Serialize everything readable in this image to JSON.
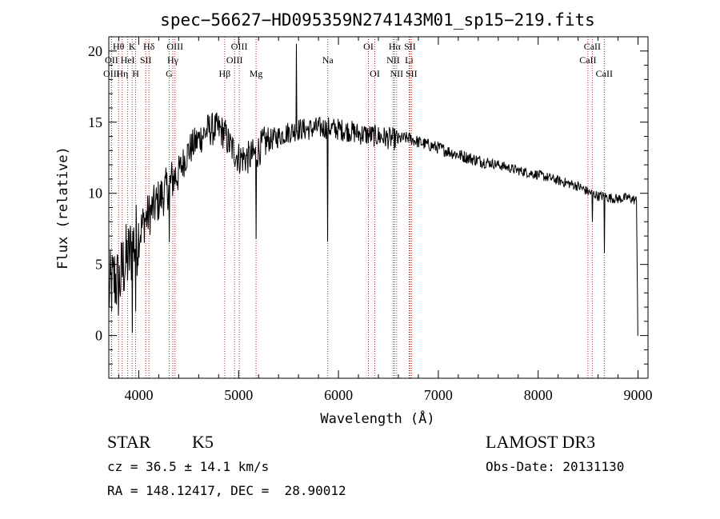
{
  "chart_data": {
    "type": "line",
    "title": "spec−56627−HD095359N274143M01_sp15−219.fits",
    "xlabel": "Wavelength (Å)",
    "ylabel": "Flux (relative)",
    "xlim": [
      3700,
      9100
    ],
    "ylim": [
      -3,
      21
    ],
    "xticks": [
      4000,
      5000,
      6000,
      7000,
      8000,
      9000
    ],
    "xtick_labels": [
      "4000",
      "5000",
      "6000",
      "7000",
      "8000",
      "9000"
    ],
    "yticks": [
      0,
      5,
      10,
      15,
      20
    ],
    "ytick_labels": [
      "0",
      "5",
      "10",
      "15",
      "20"
    ],
    "grid": false,
    "series": [
      {
        "name": "flux",
        "x": [
          3700,
          3760,
          3800,
          3850,
          3900,
          3950,
          4000,
          4050,
          4100,
          4150,
          4200,
          4250,
          4300,
          4340,
          4400,
          4500,
          4600,
          4700,
          4800,
          4861,
          4900,
          5000,
          5100,
          5175,
          5250,
          5400,
          5500,
          5600,
          5700,
          5800,
          5893,
          6000,
          6100,
          6200,
          6300,
          6400,
          6563,
          6700,
          6800,
          7000,
          7200,
          7400,
          7600,
          7800,
          8000,
          8200,
          8400,
          8500,
          8542,
          8600,
          8662,
          8700,
          8800,
          8900,
          8980,
          9000
        ],
        "y": [
          3,
          4,
          3.5,
          5,
          5.5,
          6.5,
          7,
          8,
          8.5,
          9,
          9.5,
          10,
          10.5,
          11,
          11.5,
          13,
          13.8,
          14.5,
          14.5,
          14.2,
          13.5,
          12.5,
          12.5,
          12.8,
          13.5,
          14,
          14.3,
          14.5,
          14.5,
          14.6,
          14.6,
          14.5,
          14.4,
          14.2,
          14.1,
          14,
          13.8,
          13.9,
          13.6,
          13.2,
          12.7,
          12.3,
          12,
          11.6,
          11.3,
          10.9,
          10.5,
          10.1,
          10,
          9.8,
          9.8,
          9.7,
          9.6,
          9.7,
          9.5,
          9.2
        ]
      }
    ],
    "spectral_lines": [
      {
        "label": "Hθ",
        "wavelength": 3798,
        "row": 1
      },
      {
        "label": "OII",
        "wavelength": 3727,
        "row": 2
      },
      {
        "label": "OIII",
        "wavelength": 3727,
        "row": 3
      },
      {
        "label": "K",
        "wavelength": 3934,
        "row": 1
      },
      {
        "label": "HeI",
        "wavelength": 3889,
        "row": 2
      },
      {
        "label": "Hη",
        "wavelength": 3835,
        "row": 3
      },
      {
        "label": "SII",
        "wavelength": 4070,
        "row": 2
      },
      {
        "label": "H",
        "wavelength": 3969,
        "row": 3
      },
      {
        "label": "Hδ",
        "wavelength": 4102,
        "row": 1
      },
      {
        "label": "OIII",
        "wavelength": 4363,
        "row": 1
      },
      {
        "label": "Hγ",
        "wavelength": 4341,
        "row": 2
      },
      {
        "label": "G",
        "wavelength": 4305,
        "row": 3
      },
      {
        "label": "Hβ",
        "wavelength": 4861,
        "row": 3
      },
      {
        "label": "OIII",
        "wavelength": 5007,
        "row": 1
      },
      {
        "label": "OIII",
        "wavelength": 4959,
        "row": 2
      },
      {
        "label": "Mg",
        "wavelength": 5175,
        "row": 3
      },
      {
        "label": "Na",
        "wavelength": 5893,
        "row": 2
      },
      {
        "label": "OI",
        "wavelength": 6300,
        "row": 1
      },
      {
        "label": "OI",
        "wavelength": 6364,
        "row": 3
      },
      {
        "label": "Hα",
        "wavelength": 6563,
        "row": 1
      },
      {
        "label": "NII",
        "wavelength": 6548,
        "row": 2
      },
      {
        "label": "NII",
        "wavelength": 6583,
        "row": 3
      },
      {
        "label": "SII",
        "wavelength": 6716,
        "row": 1
      },
      {
        "label": "Li",
        "wavelength": 6708,
        "row": 2
      },
      {
        "label": "SII",
        "wavelength": 6731,
        "row": 3
      },
      {
        "label": "CaII",
        "wavelength": 8542,
        "row": 1
      },
      {
        "label": "CaII",
        "wavelength": 8498,
        "row": 2
      },
      {
        "label": "CaII",
        "wavelength": 8662,
        "row": 3
      }
    ]
  },
  "info": {
    "class": "STAR",
    "subclass": "K5",
    "survey": "LAMOST DR3",
    "cz": "cz = 36.5 ± 14.1 km/s",
    "obs_date": "Obs-Date: 20131130",
    "coords": "RA = 148.12417, DEC =  28.90012"
  },
  "colors": {
    "line_marker": "#b22222",
    "spectrum": "#000000"
  }
}
